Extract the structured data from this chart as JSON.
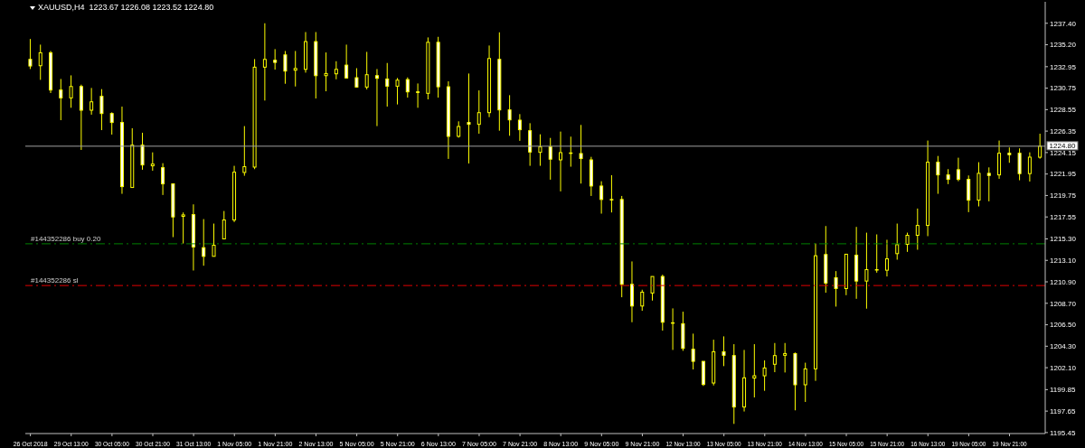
{
  "chart_data": {
    "type": "candlestick",
    "title": "XAUUSD,H4  1223.67 1226.08 1223.52 1224.80",
    "color": "#ffff00",
    "categories": [
      "26 Oct 2018",
      null,
      null,
      null,
      "29 Oct 13:00",
      null,
      null,
      null,
      "30 Oct 05:00",
      null,
      null,
      null,
      "30 Oct 21:00",
      null,
      null,
      null,
      "31 Oct 13:00",
      null,
      null,
      null,
      "1 Nov 05:00",
      null,
      null,
      null,
      "1 Nov 21:00",
      null,
      null,
      null,
      "2 Nov 13:00",
      null,
      null,
      null,
      "5 Nov 05:00",
      null,
      null,
      null,
      "5 Nov 21:00",
      null,
      null,
      null,
      "6 Nov 13:00",
      null,
      null,
      null,
      "7 Nov 05:00",
      null,
      null,
      null,
      "7 Nov 21:00",
      null,
      null,
      null,
      "8 Nov 13:00",
      null,
      null,
      null,
      "9 Nov 05:00",
      null,
      null,
      null,
      "9 Nov 21:00",
      null,
      null,
      null,
      "12 Nov 13:00",
      null,
      null,
      null,
      "13 Nov 05:00",
      null,
      null,
      null,
      "13 Nov 21:00",
      null,
      null,
      null,
      "14 Nov 13:00",
      null,
      null,
      null,
      "15 Nov 05:00",
      null,
      null,
      null,
      "15 Nov 21:00",
      null,
      null,
      null,
      "16 Nov 13:00",
      null,
      null,
      null,
      "19 Nov 05:00",
      null,
      null,
      null,
      "19 Nov 21:00",
      null,
      null,
      null
    ],
    "ohlc": [
      [
        1233.7,
        1235.79,
        1232.71,
        1233.02
      ],
      [
        1233.05,
        1235.21,
        1231.6,
        1234.38
      ],
      [
        1234.38,
        1234.56,
        1230.25,
        1230.56
      ],
      [
        1230.56,
        1231.69,
        1227.47,
        1229.75
      ],
      [
        1229.75,
        1232.06,
        1228.74,
        1230.92
      ],
      [
        1230.92,
        1231.11,
        1224.42,
        1228.49
      ],
      [
        1228.49,
        1230.77,
        1228.03,
        1229.35
      ],
      [
        1229.91,
        1230.65,
        1226.45,
        1228.15
      ],
      [
        1228.15,
        1228.27,
        1225.99,
        1227.23
      ],
      [
        1227.23,
        1228.86,
        1219.92,
        1220.66
      ],
      [
        1220.57,
        1226.64,
        1220.57,
        1224.91
      ],
      [
        1224.91,
        1226.18,
        1222.39,
        1222.88
      ],
      [
        1222.79,
        1224.17,
        1222.29,
        1222.97
      ],
      [
        1222.6,
        1223.06,
        1219.8,
        1220.94
      ],
      [
        1220.94,
        1220.94,
        1215.48,
        1217.55
      ],
      [
        1217.61,
        1218.01,
        1214.83,
        1217.76
      ],
      [
        1217.79,
        1218.84,
        1212.06,
        1214.47
      ],
      [
        1214.4,
        1217.33,
        1212.55,
        1213.51
      ],
      [
        1213.51,
        1216.87,
        1213.51,
        1214.65
      ],
      [
        1215.3,
        1218.16,
        1215.3,
        1217.24
      ],
      [
        1217.24,
        1222.79,
        1217.02,
        1222.14
      ],
      [
        1222.11,
        1226.86,
        1221.77,
        1222.7
      ],
      [
        1222.66,
        1233.73,
        1222.45,
        1232.9
      ],
      [
        1232.9,
        1237.4,
        1229.48,
        1233.7
      ],
      [
        1233.61,
        1234.75,
        1232.65,
        1233.39
      ],
      [
        1234.16,
        1234.56,
        1231.2,
        1232.5
      ],
      [
        1232.59,
        1234.56,
        1230.92,
        1232.77
      ],
      [
        1232.68,
        1236.5,
        1232.34,
        1235.52
      ],
      [
        1235.52,
        1236.5,
        1229.69,
        1232.03
      ],
      [
        1232.03,
        1234.41,
        1230.43,
        1232.25
      ],
      [
        1232.22,
        1233.51,
        1231.66,
        1232.68
      ],
      [
        1233.11,
        1235.21,
        1231.73,
        1231.79
      ],
      [
        1231.82,
        1232.8,
        1230.8,
        1230.86
      ],
      [
        1230.86,
        1234.47,
        1230.62,
        1232.13
      ],
      [
        1232.03,
        1232.71,
        1226.86,
        1231.76
      ],
      [
        1231.69,
        1233.33,
        1228.86,
        1230.95
      ],
      [
        1230.95,
        1231.79,
        1229.08,
        1231.57
      ],
      [
        1231.63,
        1231.85,
        1229.78,
        1230.37
      ],
      [
        1230.37,
        1231.23,
        1228.74,
        1230.31
      ],
      [
        1230.22,
        1235.95,
        1229.6,
        1235.45
      ],
      [
        1235.45,
        1236.01,
        1229.78,
        1230.89
      ],
      [
        1230.89,
        1231.45,
        1223.5,
        1225.81
      ],
      [
        1225.81,
        1227.35,
        1225.68,
        1226.82
      ],
      [
        1227.23,
        1232.25,
        1223.03,
        1227.04
      ],
      [
        1227.04,
        1230.52,
        1226.08,
        1228.24
      ],
      [
        1228.24,
        1235.12,
        1227.78,
        1233.79
      ],
      [
        1233.7,
        1236.47,
        1226.39,
        1228.52
      ],
      [
        1228.52,
        1230.03,
        1225.87,
        1227.5
      ],
      [
        1227.47,
        1228.09,
        1225.35,
        1226.49
      ],
      [
        1226.39,
        1227.16,
        1222.79,
        1224.2
      ],
      [
        1224.17,
        1226.02,
        1222.79,
        1224.73
      ],
      [
        1224.73,
        1225.65,
        1221.37,
        1223.47
      ],
      [
        1223.4,
        1226.3,
        1220.17,
        1224.14
      ],
      [
        1224.11,
        1225.78,
        1222.7,
        1224.11
      ],
      [
        1224.05,
        1226.98,
        1220.97,
        1223.53
      ],
      [
        1223.4,
        1223.71,
        1219.7,
        1220.72
      ],
      [
        1220.72,
        1221.21,
        1217.89,
        1219.34
      ],
      [
        1219.34,
        1221.83,
        1218.01,
        1219.3
      ],
      [
        1219.34,
        1219.7,
        1209.32,
        1210.64
      ],
      [
        1210.64,
        1212.99,
        1206.76,
        1208.42
      ],
      [
        1208.42,
        1210.09,
        1207.93,
        1209.84
      ],
      [
        1209.75,
        1211.45,
        1208.98,
        1211.45
      ],
      [
        1211.45,
        1211.63,
        1205.9,
        1206.76
      ],
      [
        1206.7,
        1208.18,
        1203.92,
        1206.67
      ],
      [
        1206.61,
        1207.84,
        1203.83,
        1204.08
      ],
      [
        1203.99,
        1205.59,
        1201.92,
        1202.75
      ],
      [
        1202.75,
        1202.75,
        1200.23,
        1200.38
      ],
      [
        1200.53,
        1204.97,
        1200.28,
        1203.74
      ],
      [
        1203.74,
        1205.31,
        1202.26,
        1203.37
      ],
      [
        1203.34,
        1204.51,
        1196.34,
        1198.07
      ],
      [
        1198.07,
        1203.92,
        1197.61,
        1201.06
      ],
      [
        1201.03,
        1204.51,
        1199.05,
        1201.27
      ],
      [
        1201.27,
        1202.85,
        1199.73,
        1202.07
      ],
      [
        1202.45,
        1204.63,
        1201.64,
        1203.34
      ],
      [
        1203.37,
        1204.63,
        1201.61,
        1203.55
      ],
      [
        1203.55,
        1203.65,
        1197.73,
        1200.35
      ],
      [
        1200.35,
        1202.61,
        1198.59,
        1201.98
      ],
      [
        1201.98,
        1214.83,
        1200.75,
        1213.57
      ],
      [
        1213.7,
        1216.62,
        1209.78,
        1210.77
      ],
      [
        1211.32,
        1212.0,
        1208.36,
        1210.21
      ],
      [
        1210.21,
        1213.73,
        1209.53,
        1213.73
      ],
      [
        1213.63,
        1216.53,
        1209.16,
        1210.98
      ],
      [
        1210.98,
        1215.94,
        1208.15,
        1212.15
      ],
      [
        1212.12,
        1215.76,
        1211.84,
        1212.15
      ],
      [
        1212.09,
        1215.21,
        1211.45,
        1213.26
      ],
      [
        1213.79,
        1216.87,
        1213.17,
        1214.71
      ],
      [
        1214.74,
        1215.94,
        1213.97,
        1215.67
      ],
      [
        1215.67,
        1218.41,
        1214.19,
        1216.68
      ],
      [
        1216.68,
        1225.38,
        1215.58,
        1223.16
      ],
      [
        1223.16,
        1223.8,
        1219.92,
        1221.86
      ],
      [
        1221.86,
        1222.45,
        1220.91,
        1221.4
      ],
      [
        1222.39,
        1223.62,
        1221.21,
        1221.4
      ],
      [
        1221.4,
        1221.8,
        1218.04,
        1219.27
      ],
      [
        1219.27,
        1223.16,
        1218.63,
        1222.02
      ],
      [
        1222.02,
        1222.63,
        1219.15,
        1221.8
      ],
      [
        1221.86,
        1225.38,
        1221.46,
        1224.08
      ],
      [
        1224.08,
        1224.67,
        1223.1,
        1223.93
      ],
      [
        1224.08,
        1224.58,
        1221.31,
        1221.99
      ],
      [
        1221.99,
        1224.17,
        1221.18,
        1223.68
      ],
      [
        1223.67,
        1226.08,
        1223.52,
        1224.8
      ]
    ],
    "ylim": [
      1195.35,
      1239.6
    ],
    "yticks": [
      {
        "value": 1237.4,
        "label": "1237.40"
      },
      {
        "value": 1235.2,
        "label": "1235.20"
      },
      {
        "value": 1232.95,
        "label": "1232.95"
      },
      {
        "value": 1230.75,
        "label": "1230.75"
      },
      {
        "value": 1228.55,
        "label": "1228.55"
      },
      {
        "value": 1226.35,
        "label": "1226.35"
      },
      {
        "value": 1224.15,
        "label": "1224.15"
      },
      {
        "value": 1221.95,
        "label": "1221.95"
      },
      {
        "value": 1219.75,
        "label": "1219.75"
      },
      {
        "value": 1217.55,
        "label": "1217.55"
      },
      {
        "value": 1215.3,
        "label": "1215.30"
      },
      {
        "value": 1213.1,
        "label": "1213.10"
      },
      {
        "value": 1210.9,
        "label": "1210.90"
      },
      {
        "value": 1208.7,
        "label": "1208.70"
      },
      {
        "value": 1206.5,
        "label": "1206.50"
      },
      {
        "value": 1204.3,
        "label": "1204.30"
      },
      {
        "value": 1202.1,
        "label": "1202.10"
      },
      {
        "value": 1199.85,
        "label": "1199.85"
      },
      {
        "value": 1197.65,
        "label": "1197.65"
      },
      {
        "value": 1195.45,
        "label": "1195.45"
      }
    ],
    "ref_lines": [
      {
        "axis": "y",
        "value": 1224.8,
        "label": "1224.80",
        "color": "#a0a0a0",
        "line_style": "solid"
      },
      {
        "axis": "y",
        "value": 1214.8,
        "label": "#144352286 buy 0.20",
        "color": "#008000",
        "line_style": "dashed"
      },
      {
        "axis": "y",
        "value": 1210.52,
        "label": "#144352286 sl",
        "color": "#e00000",
        "line_style": "dashed"
      }
    ]
  }
}
